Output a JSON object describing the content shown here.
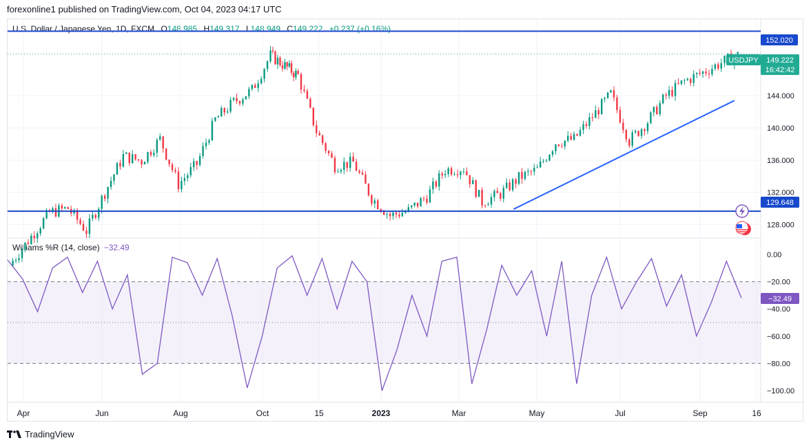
{
  "publisher_line": "forexonline1 published on TradingView.com, Oct 04, 2023 04:17 UTC",
  "legend": {
    "symbol": "U.S. Dollar / Japanese Yen, 1D, FXCM",
    "o_label": "O",
    "o_value": "148.985",
    "h_label": "H",
    "h_value": "149.317",
    "l_label": "L",
    "l_value": "148.949",
    "c_label": "C",
    "c_value": "149.222",
    "change": "+0.237 (+0.16%)"
  },
  "indicator_legend": {
    "name": "Williams %R (14, close)",
    "value": "−32.49"
  },
  "price_badges": {
    "symbol": "USDJPY",
    "last_price": "149.222",
    "countdown": "16:42:42",
    "upper_line": "152.020",
    "lower_line": "129.648"
  },
  "footer_brand": "TradingView",
  "colors": {
    "up": "#089981",
    "down": "#f23645",
    "hline": "#1848cc",
    "trendline": "#2962ff",
    "wr_line": "#7e57c2",
    "wr_band": "#ede7f6",
    "badge_teal": "#22ab94",
    "grid": "#f0f3fa"
  },
  "icons": [
    "lightning-icon",
    "us-flag-icon",
    "tradingview-logo-icon"
  ],
  "chart_data": [
    {
      "type": "candlestick",
      "title": "U.S. Dollar / Japanese Yen, 1D, FXCM",
      "y_ticks": [
        "144.000",
        "140.000",
        "136.000",
        "132.000",
        "128.000"
      ],
      "x_ticks": [
        "Apr",
        "Jun",
        "Aug",
        "Oct",
        "15",
        "2023",
        "Mar",
        "May",
        "Jul",
        "Sep",
        "16"
      ],
      "ylim": [
        126.5,
        153.5
      ],
      "horizontal_lines": [
        152.02,
        129.648
      ],
      "trendline": {
        "from": [
          "2023-04-13",
          129.9
        ],
        "to": [
          "2023-09-28",
          143.4
        ]
      },
      "series": [
        {
          "name": "USDJPY",
          "x": [
            "2022-03-28",
            "2022-04-11",
            "2022-04-25",
            "2022-05-09",
            "2022-05-23",
            "2022-06-06",
            "2022-06-20",
            "2022-07-04",
            "2022-07-18",
            "2022-08-01",
            "2022-08-15",
            "2022-08-29",
            "2022-09-12",
            "2022-09-26",
            "2022-10-10",
            "2022-10-21",
            "2022-10-31",
            "2022-11-14",
            "2022-11-28",
            "2022-12-12",
            "2022-12-26",
            "2023-01-09",
            "2023-01-23",
            "2023-02-06",
            "2023-02-20",
            "2023-03-06",
            "2023-03-20",
            "2023-04-03",
            "2023-04-17",
            "2023-05-01",
            "2023-05-15",
            "2023-05-29",
            "2023-06-12",
            "2023-06-26",
            "2023-07-10",
            "2023-07-24",
            "2023-08-07",
            "2023-08-21",
            "2023-09-04",
            "2023-09-18",
            "2023-10-03"
          ],
          "close": [
            123.5,
            126.5,
            129.5,
            130.0,
            127.2,
            132.0,
            136.5,
            135.9,
            138.6,
            133.0,
            135.5,
            141.0,
            143.2,
            144.7,
            149.0,
            147.7,
            146.5,
            139.6,
            135.3,
            135.7,
            131.3,
            129.1,
            129.7,
            131.5,
            134.8,
            135.0,
            130.8,
            131.8,
            133.8,
            134.8,
            138.2,
            138.6,
            141.4,
            144.2,
            138.4,
            140.8,
            144.0,
            145.8,
            146.9,
            148.1,
            149.2
          ]
        }
      ]
    },
    {
      "type": "line",
      "title": "Williams %R (14, close)",
      "y_ticks": [
        "0.00",
        "−20.00",
        "−40.00",
        "−60.00",
        "−80.00",
        "−100.00"
      ],
      "ylim": [
        -100,
        0
      ],
      "bands": [
        -20,
        -50,
        -80
      ],
      "series": [
        {
          "name": "Williams %R",
          "values": [
            -4,
            -18,
            -42,
            -10,
            -2,
            -28,
            -5,
            -40,
            -15,
            -88,
            -80,
            -2,
            -6,
            -30,
            -3,
            -45,
            -98,
            -60,
            -10,
            -1,
            -30,
            -3,
            -40,
            -5,
            -20,
            -100,
            -70,
            -30,
            -60,
            -5,
            -2,
            -95,
            -55,
            -8,
            -30,
            -12,
            -60,
            -5,
            -95,
            -30,
            -2,
            -40,
            -20,
            -3,
            -38,
            -15,
            -60,
            -35,
            -5,
            -32
          ]
        }
      ]
    }
  ]
}
